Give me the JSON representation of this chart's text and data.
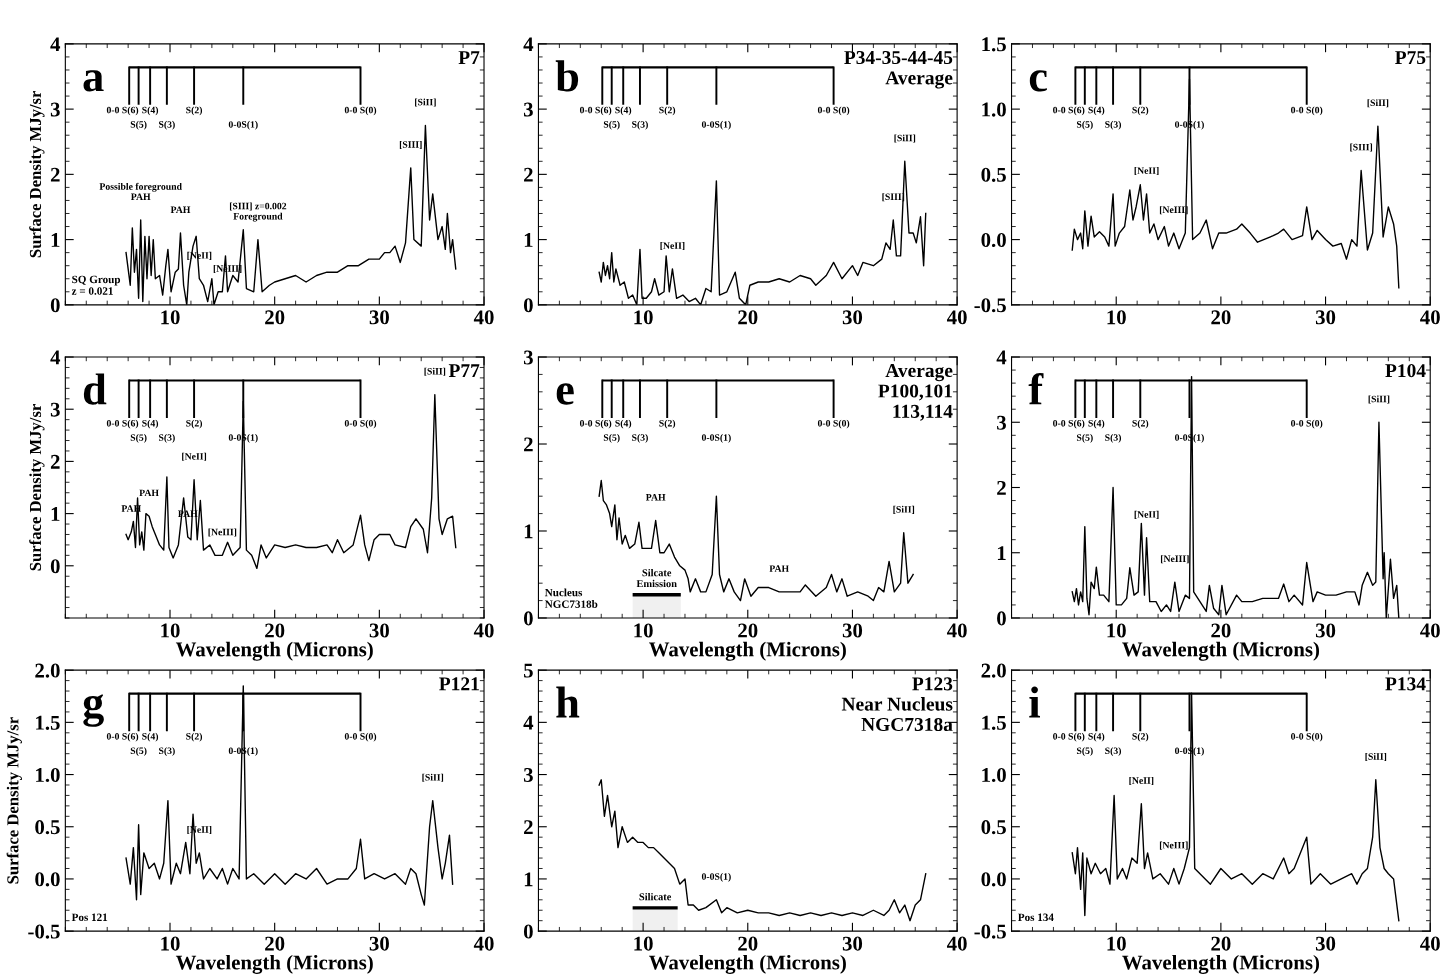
{
  "chart_data": [
    {
      "type": "line",
      "title": "a",
      "subtitle": "P7",
      "ylabel": "Surface Density MJy/sr",
      "xlim": [
        0,
        40
      ],
      "xticks": [
        10,
        20,
        30,
        40
      ],
      "ylim": [
        0,
        4
      ],
      "yticks": [
        0,
        1,
        2,
        3,
        4
      ],
      "x": [
        5.8,
        6.0,
        6.2,
        6.4,
        6.6,
        6.8,
        7.0,
        7.2,
        7.4,
        7.6,
        7.8,
        8.0,
        8.2,
        8.4,
        8.6,
        9.0,
        9.3,
        9.6,
        9.8,
        10.1,
        10.5,
        10.8,
        11.0,
        11.3,
        11.6,
        11.8,
        12.2,
        12.5,
        12.8,
        13.2,
        13.6,
        14.0,
        14.2,
        14.6,
        15.0,
        15.3,
        15.5,
        16.0,
        16.5,
        17.0,
        17.3,
        18.0,
        18.4,
        18.8,
        19.5,
        20.0,
        21,
        22,
        23,
        24,
        25,
        26,
        27,
        28,
        29,
        30,
        30.5,
        31,
        31.5,
        32,
        32.5,
        33,
        33.3,
        34.0,
        34.4,
        34.8,
        35.1,
        35.6,
        36.0,
        36.3,
        36.5,
        36.8,
        37.0,
        37.3
      ],
      "series": [
        {
          "color": "#000000",
          "values": [
            0.8,
            0.55,
            0.3,
            1.18,
            0.5,
            0.85,
            0.1,
            1.3,
            0.05,
            1.05,
            0.4,
            1.05,
            0.45,
            1.0,
            0.4,
            0.45,
            0.15,
            0.6,
            0.85,
            0.2,
            0.5,
            0.55,
            1.1,
            0.3,
            0.0,
            0.5,
            0.9,
            1.05,
            0.4,
            0.3,
            0.05,
            0.4,
            0.0,
            0.2,
            0.2,
            0.75,
            0.2,
            0.45,
            0.35,
            1.15,
            0.25,
            0.2,
            1.0,
            0.2,
            0.3,
            0.35,
            0.4,
            0.45,
            0.35,
            0.45,
            0.5,
            0.5,
            0.6,
            0.6,
            0.7,
            0.7,
            0.8,
            0.8,
            0.9,
            0.65,
            0.95,
            2.1,
            1.0,
            0.9,
            2.75,
            1.3,
            1.7,
            1.0,
            1.2,
            0.85,
            1.4,
            0.8,
            1.0,
            0.55
          ]
        }
      ],
      "ref_lines": [
        {
          "axis": "x",
          "value": 6.1,
          "label": "0-0 S(6)"
        },
        {
          "axis": "x",
          "value": 7.0,
          "label": "S(5)"
        },
        {
          "axis": "x",
          "value": 8.1,
          "label": "S(4)"
        },
        {
          "axis": "x",
          "value": 9.7,
          "label": "S(3)"
        },
        {
          "axis": "x",
          "value": 12.3,
          "label": "S(2)"
        },
        {
          "axis": "x",
          "value": 17.0,
          "label": "0-0S(1)"
        },
        {
          "axis": "x",
          "value": 28.2,
          "label": "0-0 S(0)"
        }
      ],
      "annotations": [
        {
          "text": "[NeII]",
          "x": 12.8,
          "y": 0.4
        },
        {
          "text": "[NeIII]",
          "x": 15.5,
          "y": 0.2
        },
        {
          "text": "[SIII]",
          "x": 33,
          "y": 2.1
        },
        {
          "text": "[SiII]",
          "x": 34.4,
          "y": 2.75
        },
        {
          "text": "Possible foreground\nPAH",
          "x": 7.2,
          "y": 1.3
        },
        {
          "text": "PAH",
          "x": 11.0,
          "y": 1.1
        },
        {
          "text": "[SIII] z=0.002\nForeground",
          "x": 18.4,
          "y": 1.0
        },
        "SQ Group\nz = 0.021"
      ]
    },
    {
      "type": "line",
      "title": "b",
      "subtitle": "P34-35-44-45\nAverage",
      "xlim": [
        0,
        40
      ],
      "xticks": [
        10,
        20,
        30,
        40
      ],
      "ylim": [
        0,
        4
      ],
      "yticks": [
        0,
        1,
        2,
        3,
        4
      ],
      "x": [
        5.8,
        6.0,
        6.2,
        6.4,
        6.6,
        6.8,
        7.0,
        7.2,
        7.4,
        7.8,
        8.2,
        8.6,
        9.0,
        9.4,
        9.7,
        9.9,
        10.3,
        10.8,
        11.1,
        11.5,
        12.0,
        12.2,
        12.5,
        12.8,
        13.2,
        13.8,
        14.4,
        15.0,
        15.5,
        16.0,
        16.5,
        17.0,
        17.3,
        18.0,
        18.8,
        19.2,
        19.8,
        20.2,
        21,
        22,
        23,
        24,
        25,
        26,
        26.5,
        27.5,
        28.2,
        29,
        30,
        30.5,
        31,
        32,
        32.8,
        33.2,
        33.6,
        33.9,
        34.2,
        34.6,
        35.0,
        35.4,
        35.8,
        36.1,
        36.5,
        36.8,
        37.0
      ],
      "series": [
        {
          "color": "#000000",
          "values": [
            0.5,
            0.35,
            0.65,
            0.45,
            0.6,
            0.4,
            0.8,
            0.35,
            0.55,
            0.3,
            0.35,
            0.1,
            0.15,
            0.0,
            0.85,
            0.1,
            0.1,
            0.2,
            0.4,
            0.15,
            0.2,
            0.75,
            0.2,
            0.55,
            0.1,
            0.15,
            0.05,
            0.1,
            0.0,
            0.25,
            0.2,
            1.9,
            0.15,
            0.2,
            0.5,
            0.1,
            0.0,
            0.3,
            0.35,
            0.35,
            0.4,
            0.35,
            0.45,
            0.4,
            0.3,
            0.45,
            0.65,
            0.4,
            0.6,
            0.45,
            0.65,
            0.6,
            0.7,
            0.95,
            0.85,
            1.3,
            0.75,
            0.75,
            2.2,
            1.1,
            1.1,
            0.95,
            1.35,
            0.6,
            1.4
          ]
        }
      ],
      "ref_lines": [
        {
          "axis": "x",
          "value": 6.1,
          "label": "0-0 S(6)"
        },
        {
          "axis": "x",
          "value": 7.0,
          "label": "S(5)"
        },
        {
          "axis": "x",
          "value": 8.1,
          "label": "S(4)"
        },
        {
          "axis": "x",
          "value": 9.7,
          "label": "S(3)"
        },
        {
          "axis": "x",
          "value": 12.3,
          "label": "S(2)"
        },
        {
          "axis": "x",
          "value": 17.0,
          "label": "0-0S(1)"
        },
        {
          "axis": "x",
          "value": 28.2,
          "label": "0-0 S(0)"
        }
      ],
      "annotations": [
        {
          "text": "[NeII]",
          "x": 12.8,
          "y": 0.55
        },
        {
          "text": "[SIII]",
          "x": 33.9,
          "y": 1.3
        },
        {
          "text": "[SiII]",
          "x": 35.0,
          "y": 2.2
        }
      ]
    },
    {
      "type": "line",
      "title": "c",
      "subtitle": "P75",
      "xlim": [
        0,
        40
      ],
      "xticks": [
        10,
        20,
        30,
        40
      ],
      "ylim": [
        -0.5,
        1.5
      ],
      "yticks": [
        {
          "value": -0.5,
          "label": "-0.5"
        },
        {
          "value": 0,
          "label": "0.0"
        },
        {
          "value": 0.5,
          "label": "0.5"
        },
        {
          "value": 1,
          "label": "1.0"
        },
        {
          "value": 1.5,
          "label": "1.5"
        }
      ],
      "x": [
        5.8,
        6.0,
        6.3,
        6.6,
        6.8,
        7.0,
        7.3,
        7.6,
        7.9,
        8.4,
        8.9,
        9.3,
        9.7,
        9.9,
        10.3,
        10.8,
        11.3,
        11.6,
        11.9,
        12.3,
        12.6,
        12.9,
        13.2,
        13.6,
        14.0,
        14.6,
        15.0,
        15.5,
        16.0,
        16.6,
        17.0,
        17.3,
        18.0,
        18.6,
        19.2,
        19.8,
        20.5,
        21.5,
        22.0,
        22.8,
        23.5,
        25,
        25.5,
        26,
        26.8,
        27.8,
        28.2,
        28.7,
        29.2,
        30,
        30.7,
        31.5,
        32.0,
        32.5,
        33.0,
        33.4,
        34.0,
        34.5,
        35.0,
        35.5,
        36.0,
        36.5,
        36.8,
        37.0
      ],
      "series": [
        {
          "color": "#000000",
          "values": [
            -0.08,
            0.08,
            0.0,
            0.05,
            -0.07,
            0.22,
            -0.05,
            0.18,
            0.02,
            0.06,
            0.02,
            -0.05,
            0.35,
            -0.05,
            0.05,
            0.1,
            0.38,
            0.15,
            0.25,
            0.42,
            0.15,
            0.35,
            0.05,
            0.12,
            0.0,
            0.1,
            -0.05,
            0.05,
            -0.07,
            0.05,
            1.23,
            0.0,
            0.05,
            0.15,
            -0.07,
            0.05,
            0.05,
            0.08,
            0.12,
            0.05,
            -0.02,
            0.03,
            0.05,
            0.08,
            0.0,
            0.03,
            0.25,
            0.0,
            0.07,
            0.0,
            -0.05,
            -0.03,
            -0.15,
            0.0,
            -0.05,
            0.53,
            -0.08,
            0.05,
            0.87,
            0.02,
            0.25,
            0.12,
            -0.05,
            -0.37
          ]
        }
      ],
      "ref_lines": [
        {
          "axis": "x",
          "value": 6.1,
          "label": "0-0 S(6)"
        },
        {
          "axis": "x",
          "value": 7.0,
          "label": "S(5)"
        },
        {
          "axis": "x",
          "value": 8.1,
          "label": "S(4)"
        },
        {
          "axis": "x",
          "value": 9.7,
          "label": "S(3)"
        },
        {
          "axis": "x",
          "value": 12.3,
          "label": "S(2)"
        },
        {
          "axis": "x",
          "value": 17.0,
          "label": "0-0S(1)"
        },
        {
          "axis": "x",
          "value": 28.2,
          "label": "0-0 S(0)"
        }
      ],
      "annotations": [
        {
          "text": "[NeII]",
          "x": 12.9,
          "y": 0.35
        },
        {
          "text": "[NeIII]",
          "x": 15.5,
          "y": 0.05
        },
        {
          "text": "[SIII]",
          "x": 33.4,
          "y": 0.53
        },
        {
          "text": "[SiII]",
          "x": 35.0,
          "y": 0.87
        }
      ]
    },
    {
      "type": "line",
      "title": "d",
      "subtitle": "P77",
      "ylabel": "Surface Density MJy/sr",
      "xlabel": "Wavelength (Microns)",
      "xlim": [
        0,
        40
      ],
      "xticks": [
        10,
        20,
        30,
        40
      ],
      "ylim": [
        -1,
        4
      ],
      "yticks": [
        0,
        1,
        2,
        3,
        4
      ],
      "x": [
        5.8,
        6.0,
        6.3,
        6.5,
        6.7,
        6.9,
        7.1,
        7.3,
        7.5,
        7.7,
        8.0,
        8.3,
        8.6,
        9.0,
        9.4,
        9.7,
        9.9,
        10.3,
        10.8,
        11.3,
        11.7,
        12.0,
        12.3,
        12.6,
        12.9,
        13.2,
        13.8,
        14.3,
        15.0,
        15.5,
        16.0,
        16.7,
        17.0,
        17.3,
        17.8,
        18.3,
        18.7,
        19.2,
        20.0,
        21,
        22,
        23,
        24,
        25,
        25.5,
        26.0,
        26.6,
        27.5,
        28.2,
        28.6,
        29.0,
        29.5,
        30,
        31,
        31.5,
        32.5,
        33,
        33.5,
        34.2,
        34.6,
        35.0,
        35.3,
        35.7,
        36.0,
        36.5,
        37.0,
        37.3
      ],
      "series": [
        {
          "color": "#000000",
          "values": [
            0.6,
            0.5,
            0.65,
            0.85,
            0.35,
            1.3,
            0.4,
            0.65,
            0.3,
            1.0,
            0.95,
            0.75,
            0.6,
            0.4,
            0.3,
            1.7,
            0.35,
            0.15,
            0.4,
            1.3,
            0.55,
            0.5,
            1.65,
            0.5,
            1.25,
            0.3,
            0.4,
            0.2,
            0.2,
            0.45,
            0.2,
            0.35,
            3.15,
            0.3,
            0.2,
            -0.05,
            0.4,
            0.15,
            0.4,
            0.35,
            0.4,
            0.35,
            0.35,
            0.4,
            0.25,
            0.5,
            0.25,
            0.4,
            0.97,
            0.4,
            0.1,
            0.5,
            0.6,
            0.6,
            0.4,
            0.35,
            0.75,
            0.9,
            0.7,
            0.25,
            1.3,
            3.28,
            0.9,
            0.6,
            0.9,
            0.95,
            0.35
          ]
        }
      ],
      "ref_lines": [
        {
          "axis": "x",
          "value": 6.1,
          "label": "0-0 S(6)"
        },
        {
          "axis": "x",
          "value": 7.0,
          "label": "S(5)"
        },
        {
          "axis": "x",
          "value": 8.1,
          "label": "S(4)"
        },
        {
          "axis": "x",
          "value": 9.7,
          "label": "S(3)"
        },
        {
          "axis": "x",
          "value": 12.3,
          "label": "S(2)"
        },
        {
          "axis": "x",
          "value": 17.0,
          "label": "0-0S(1)"
        },
        {
          "axis": "x",
          "value": 28.2,
          "label": "0-0 S(0)"
        }
      ],
      "annotations": [
        {
          "text": "[NeII]",
          "x": 12.3,
          "y": 1.65
        },
        {
          "text": "[NeIII]",
          "x": 15.0,
          "y": 0.2
        },
        {
          "text": "[SiII]",
          "x": 35.3,
          "y": 3.28
        },
        {
          "text": "PAH",
          "x": 6.3,
          "y": 0.65
        },
        {
          "text": "PAH",
          "x": 8.0,
          "y": 0.95
        },
        {
          "text": "PAH",
          "x": 11.7,
          "y": 0.55
        }
      ]
    },
    {
      "type": "line",
      "title": "e",
      "subtitle": "Average\nP100,101\n113,114",
      "xlabel": "Wavelength (Microns)",
      "xlim": [
        0,
        40
      ],
      "xticks": [
        10,
        20,
        30,
        40
      ],
      "ylim": [
        0,
        3
      ],
      "yticks": [
        0,
        1,
        2,
        3
      ],
      "x": [
        5.8,
        6.0,
        6.2,
        6.5,
        6.8,
        7.0,
        7.3,
        7.5,
        7.7,
        8.0,
        8.3,
        8.7,
        9.2,
        9.6,
        9.9,
        10.3,
        10.8,
        11.2,
        11.6,
        12.0,
        12.5,
        13.0,
        13.5,
        14.0,
        14.3,
        14.5,
        15.0,
        15.5,
        16.0,
        16.6,
        17.0,
        17.3,
        17.7,
        18.2,
        18.7,
        19.3,
        19.7,
        20.3,
        21,
        22,
        23,
        24,
        25,
        25.5,
        26.5,
        27.5,
        28.0,
        28.5,
        29.0,
        29.5,
        30.5,
        31.5,
        32.0,
        32.5,
        33.0,
        33.5,
        34.0,
        34.6,
        34.9,
        35.3,
        35.8
      ],
      "series": [
        {
          "color": "#000000",
          "values": [
            1.4,
            1.58,
            1.35,
            1.3,
            1.2,
            1.05,
            1.3,
            0.9,
            1.15,
            0.85,
            0.95,
            0.8,
            0.85,
            1.1,
            0.8,
            0.8,
            0.8,
            1.12,
            0.75,
            0.75,
            0.85,
            0.7,
            0.6,
            0.55,
            0.45,
            0.3,
            0.45,
            0.3,
            0.3,
            0.5,
            1.4,
            0.5,
            0.3,
            0.45,
            0.3,
            0.2,
            0.45,
            0.25,
            0.35,
            0.35,
            0.3,
            0.3,
            0.3,
            0.38,
            0.25,
            0.35,
            0.5,
            0.3,
            0.45,
            0.25,
            0.3,
            0.25,
            0.2,
            0.35,
            0.3,
            0.65,
            0.3,
            0.4,
            0.98,
            0.4,
            0.5
          ]
        }
      ],
      "ref_lines": [
        {
          "axis": "x",
          "value": 6.1,
          "label": "0-0 S(6)"
        },
        {
          "axis": "x",
          "value": 7.0,
          "label": "S(5)"
        },
        {
          "axis": "x",
          "value": 8.1,
          "label": "S(4)"
        },
        {
          "axis": "x",
          "value": 9.7,
          "label": "S(3)"
        },
        {
          "axis": "x",
          "value": 12.3,
          "label": "S(2)"
        },
        {
          "axis": "x",
          "value": 17.0,
          "label": "0-0S(1)"
        },
        {
          "axis": "x",
          "value": 28.2,
          "label": "0-0 S(0)"
        }
      ],
      "bands": [
        {
          "axis": "x",
          "from": 9.0,
          "to": 13.6,
          "label": "Silcate\nEmission"
        }
      ],
      "annotations": [
        {
          "text": "[SiII]",
          "x": 34.9,
          "y": 0.98
        },
        {
          "text": "PAH",
          "x": 11.2,
          "y": 1.12
        },
        {
          "text": "PAH",
          "x": 23,
          "y": 0.3
        },
        "Nucleus\nNGC7318b"
      ]
    },
    {
      "type": "line",
      "title": "f",
      "subtitle": "P104",
      "xlabel": "Wavelength (Microns)",
      "xlim": [
        0,
        40
      ],
      "xticks": [
        10,
        20,
        30,
        40
      ],
      "ylim": [
        0,
        4
      ],
      "yticks": [
        0,
        1,
        2,
        3,
        4
      ],
      "x": [
        5.8,
        6.0,
        6.2,
        6.4,
        6.6,
        6.8,
        7.0,
        7.2,
        7.4,
        7.6,
        7.9,
        8.1,
        8.4,
        8.8,
        9.3,
        9.7,
        10.0,
        10.5,
        11.0,
        11.3,
        11.7,
        12.1,
        12.4,
        12.7,
        12.9,
        13.2,
        13.8,
        14.3,
        14.8,
        15.2,
        15.6,
        16.0,
        16.6,
        17.0,
        17.2,
        17.4,
        18.0,
        18.6,
        18.9,
        19.3,
        19.8,
        20.1,
        20.5,
        21.5,
        22,
        23,
        24,
        25,
        25.5,
        26.0,
        26.5,
        27.0,
        27.8,
        28.2,
        28.8,
        29.2,
        30,
        31,
        32,
        32.8,
        33.2,
        33.5,
        34.0,
        34.5,
        34.8,
        35.1,
        35.5,
        35.6,
        35.8,
        36.2,
        36.5,
        36.8,
        37.0
      ],
      "series": [
        {
          "color": "#000000",
          "values": [
            0.4,
            0.25,
            0.45,
            0.2,
            0.4,
            0.25,
            1.4,
            0.3,
            0.05,
            0.55,
            0.45,
            0.78,
            0.35,
            0.35,
            0.25,
            2.0,
            0.2,
            0.2,
            0.3,
            0.77,
            0.35,
            0.4,
            1.45,
            0.35,
            1.23,
            0.25,
            0.25,
            0.1,
            0.2,
            0.1,
            0.55,
            0.1,
            0.35,
            0.3,
            3.7,
            0.4,
            0.25,
            0.1,
            0.5,
            0.15,
            0.05,
            0.5,
            0.05,
            0.35,
            0.25,
            0.25,
            0.3,
            0.3,
            0.3,
            0.52,
            0.25,
            0.35,
            0.2,
            0.85,
            0.25,
            0.4,
            0.35,
            0.35,
            0.4,
            0.4,
            0.2,
            0.5,
            0.7,
            0.5,
            0.55,
            3.0,
            0.6,
            1.0,
            0.0,
            0.9,
            0.3,
            0.5,
            0.0
          ]
        }
      ],
      "ref_lines": [
        {
          "axis": "x",
          "value": 6.1,
          "label": "0-0 S(6)"
        },
        {
          "axis": "x",
          "value": 7.0,
          "label": "S(5)"
        },
        {
          "axis": "x",
          "value": 8.1,
          "label": "S(4)"
        },
        {
          "axis": "x",
          "value": 9.7,
          "label": "S(3)"
        },
        {
          "axis": "x",
          "value": 12.3,
          "label": "S(2)"
        },
        {
          "axis": "x",
          "value": 17.0,
          "label": "0-0S(1)"
        },
        {
          "axis": "x",
          "value": 28.2,
          "label": "0-0 S(0)"
        }
      ],
      "annotations": [
        {
          "text": "[NeII]",
          "x": 12.9,
          "y": 1.23
        },
        {
          "text": "[NeIII]",
          "x": 15.6,
          "y": 0.55
        },
        {
          "text": "[SiII]",
          "x": 35.1,
          "y": 3.0
        }
      ]
    },
    {
      "type": "line",
      "title": "g",
      "subtitle": "P121",
      "ylabel": "Surface Density MJy/sr",
      "xlabel": "Wavelength (Microns)",
      "xlim": [
        0,
        40
      ],
      "xticks": [
        10,
        20,
        30,
        40
      ],
      "ylim": [
        -0.5,
        2.0
      ],
      "yticks": [
        {
          "value": -0.5,
          "label": "-0.5"
        },
        {
          "value": 0,
          "label": "0.0"
        },
        {
          "value": 0.5,
          "label": "0.5"
        },
        {
          "value": 1,
          "label": "1.0"
        },
        {
          "value": 1.5,
          "label": "1.5"
        },
        {
          "value": 2,
          "label": "2.0"
        }
      ],
      "x": [
        5.8,
        6.2,
        6.5,
        6.8,
        7.0,
        7.2,
        7.5,
        8.0,
        8.5,
        9.0,
        9.4,
        9.8,
        10.1,
        10.6,
        11.0,
        11.5,
        11.9,
        12.2,
        12.5,
        12.8,
        13.2,
        13.8,
        14.5,
        15,
        15.5,
        16.0,
        16.6,
        17.0,
        17.3,
        18,
        19,
        20,
        21,
        22,
        23,
        24,
        25,
        26,
        27,
        27.8,
        28.2,
        28.6,
        29.5,
        30.5,
        31.5,
        32.5,
        33,
        33.5,
        34.0,
        34.3,
        34.8,
        35.1,
        35.6,
        36.0,
        36.3,
        36.7,
        37.0
      ],
      "series": [
        {
          "color": "#000000",
          "values": [
            0.2,
            -0.05,
            0.3,
            -0.2,
            0.52,
            -0.15,
            0.25,
            0.1,
            0.15,
            0.0,
            0.15,
            0.75,
            -0.05,
            0.15,
            0.05,
            0.35,
            0.05,
            0.62,
            0.15,
            0.25,
            0.0,
            0.1,
            0.0,
            0.1,
            -0.05,
            0.1,
            0.0,
            1.85,
            0.0,
            0.05,
            -0.05,
            0.05,
            -0.05,
            0.05,
            0.0,
            0.1,
            -0.05,
            0.0,
            0.0,
            0.1,
            0.38,
            0.0,
            0.05,
            0.0,
            0.05,
            -0.05,
            0.1,
            0.05,
            -0.15,
            -0.25,
            0.5,
            0.75,
            0.3,
            0.0,
            0.15,
            0.42,
            -0.05
          ]
        }
      ],
      "ref_lines": [
        {
          "axis": "x",
          "value": 6.1,
          "label": "0-0 S(6)"
        },
        {
          "axis": "x",
          "value": 7.0,
          "label": "S(5)"
        },
        {
          "axis": "x",
          "value": 8.1,
          "label": "S(4)"
        },
        {
          "axis": "x",
          "value": 9.7,
          "label": "S(3)"
        },
        {
          "axis": "x",
          "value": 12.3,
          "label": "S(2)"
        },
        {
          "axis": "x",
          "value": 17.0,
          "label": "0-0S(1)"
        },
        {
          "axis": "x",
          "value": 28.2,
          "label": "0-0 S(0)"
        }
      ],
      "annotations": [
        {
          "text": "[NeII]",
          "x": 12.8,
          "y": 0.25
        },
        {
          "text": "[SiII]",
          "x": 35.1,
          "y": 0.75
        },
        "Pos 121"
      ]
    },
    {
      "type": "line",
      "title": "h",
      "subtitle": "P123\nNear Nucleus\nNGC7318a",
      "xlabel": "Wavelength (Microns)",
      "xlim": [
        0,
        40
      ],
      "xticks": [
        10,
        20,
        30,
        40
      ],
      "ylim": [
        0,
        5
      ],
      "yticks": [
        0,
        1,
        2,
        3,
        4,
        5
      ],
      "x": [
        5.8,
        6.0,
        6.3,
        6.6,
        7.0,
        7.3,
        7.6,
        8.0,
        8.5,
        9.0,
        9.5,
        10,
        10.5,
        11,
        11.5,
        12,
        12.5,
        13,
        13.5,
        14.0,
        14.3,
        14.8,
        15.3,
        16,
        17.0,
        17.5,
        18,
        19,
        20,
        21,
        22,
        23,
        24,
        25,
        26,
        27,
        28,
        29,
        30,
        31,
        32,
        33,
        33.5,
        34,
        34.5,
        35,
        35.5,
        36,
        36.5,
        37.0
      ],
      "series": [
        {
          "color": "#000000",
          "values": [
            2.8,
            2.9,
            2.2,
            2.6,
            2.0,
            2.3,
            1.6,
            2.0,
            1.7,
            1.8,
            1.7,
            1.7,
            1.6,
            1.6,
            1.5,
            1.4,
            1.3,
            1.2,
            0.9,
            1.0,
            0.5,
            0.5,
            0.4,
            0.45,
            0.6,
            0.35,
            0.45,
            0.35,
            0.4,
            0.35,
            0.35,
            0.3,
            0.35,
            0.3,
            0.35,
            0.3,
            0.35,
            0.3,
            0.35,
            0.3,
            0.4,
            0.3,
            0.4,
            0.6,
            0.35,
            0.5,
            0.2,
            0.5,
            0.6,
            1.1
          ]
        }
      ],
      "bands": [
        {
          "axis": "x",
          "from": 9.0,
          "to": 13.3,
          "label": "Silicate"
        }
      ],
      "annotations": [
        {
          "text": "0-0S(1)",
          "x": 17.0,
          "y": 0.6
        }
      ]
    },
    {
      "type": "line",
      "title": "i",
      "subtitle": "P134",
      "xlabel": "Wavelength (Microns)",
      "xlim": [
        0,
        40
      ],
      "xticks": [
        10,
        20,
        30,
        40
      ],
      "ylim": [
        -0.5,
        2.0
      ],
      "yticks": [
        {
          "value": -0.5,
          "label": "-0.5"
        },
        {
          "value": 0,
          "label": "0.0"
        },
        {
          "value": 0.5,
          "label": "0.5"
        },
        {
          "value": 1,
          "label": "1.0"
        },
        {
          "value": 1.5,
          "label": "1.5"
        },
        {
          "value": 2,
          "label": "2.0"
        }
      ],
      "x": [
        5.8,
        6.1,
        6.3,
        6.6,
        6.8,
        7.0,
        7.2,
        7.6,
        8.0,
        8.5,
        9.0,
        9.4,
        9.8,
        10.1,
        10.6,
        11.0,
        11.5,
        12.0,
        12.4,
        12.7,
        13.0,
        13.5,
        14.2,
        15.0,
        15.5,
        16.0,
        16.5,
        17.0,
        17.2,
        17.5,
        18,
        19,
        20,
        21,
        22,
        23,
        24,
        25,
        26,
        26.5,
        27,
        28.2,
        28.6,
        29.5,
        30.5,
        31.5,
        32.5,
        33,
        33.5,
        34.0,
        34.5,
        34.8,
        35.2,
        35.6,
        36,
        36.5,
        37.0
      ],
      "series": [
        {
          "color": "#000000",
          "values": [
            0.25,
            0.05,
            0.3,
            -0.1,
            0.25,
            -0.35,
            0.2,
            0.05,
            0.15,
            0.05,
            0.1,
            -0.05,
            0.8,
            0.0,
            0.1,
            0.0,
            0.2,
            0.15,
            0.72,
            0.1,
            0.25,
            0.0,
            0.05,
            -0.05,
            0.1,
            -0.05,
            0.1,
            0.3,
            1.78,
            0.1,
            0.05,
            -0.05,
            0.1,
            0.0,
            0.05,
            -0.05,
            0.05,
            0.0,
            0.2,
            0.05,
            0.1,
            0.4,
            -0.05,
            0.05,
            -0.05,
            0.0,
            0.05,
            -0.05,
            0.05,
            0.1,
            0.4,
            0.95,
            0.3,
            0.1,
            0.05,
            0.0,
            -0.4
          ]
        }
      ],
      "ref_lines": [
        {
          "axis": "x",
          "value": 6.1,
          "label": "0-0 S(6)"
        },
        {
          "axis": "x",
          "value": 7.0,
          "label": "S(5)"
        },
        {
          "axis": "x",
          "value": 8.1,
          "label": "S(4)"
        },
        {
          "axis": "x",
          "value": 9.7,
          "label": "S(3)"
        },
        {
          "axis": "x",
          "value": 12.3,
          "label": "S(2)"
        },
        {
          "axis": "x",
          "value": 17.0,
          "label": "0-0S(1)"
        },
        {
          "axis": "x",
          "value": 28.2,
          "label": "0-0 S(0)"
        }
      ],
      "annotations": [
        {
          "text": "[NeII]",
          "x": 12.4,
          "y": 0.72
        },
        {
          "text": "[NeIII]",
          "x": 15.5,
          "y": 0.1
        },
        {
          "text": "[SiII]",
          "x": 34.8,
          "y": 0.95
        },
        "Pos 134"
      ]
    }
  ]
}
